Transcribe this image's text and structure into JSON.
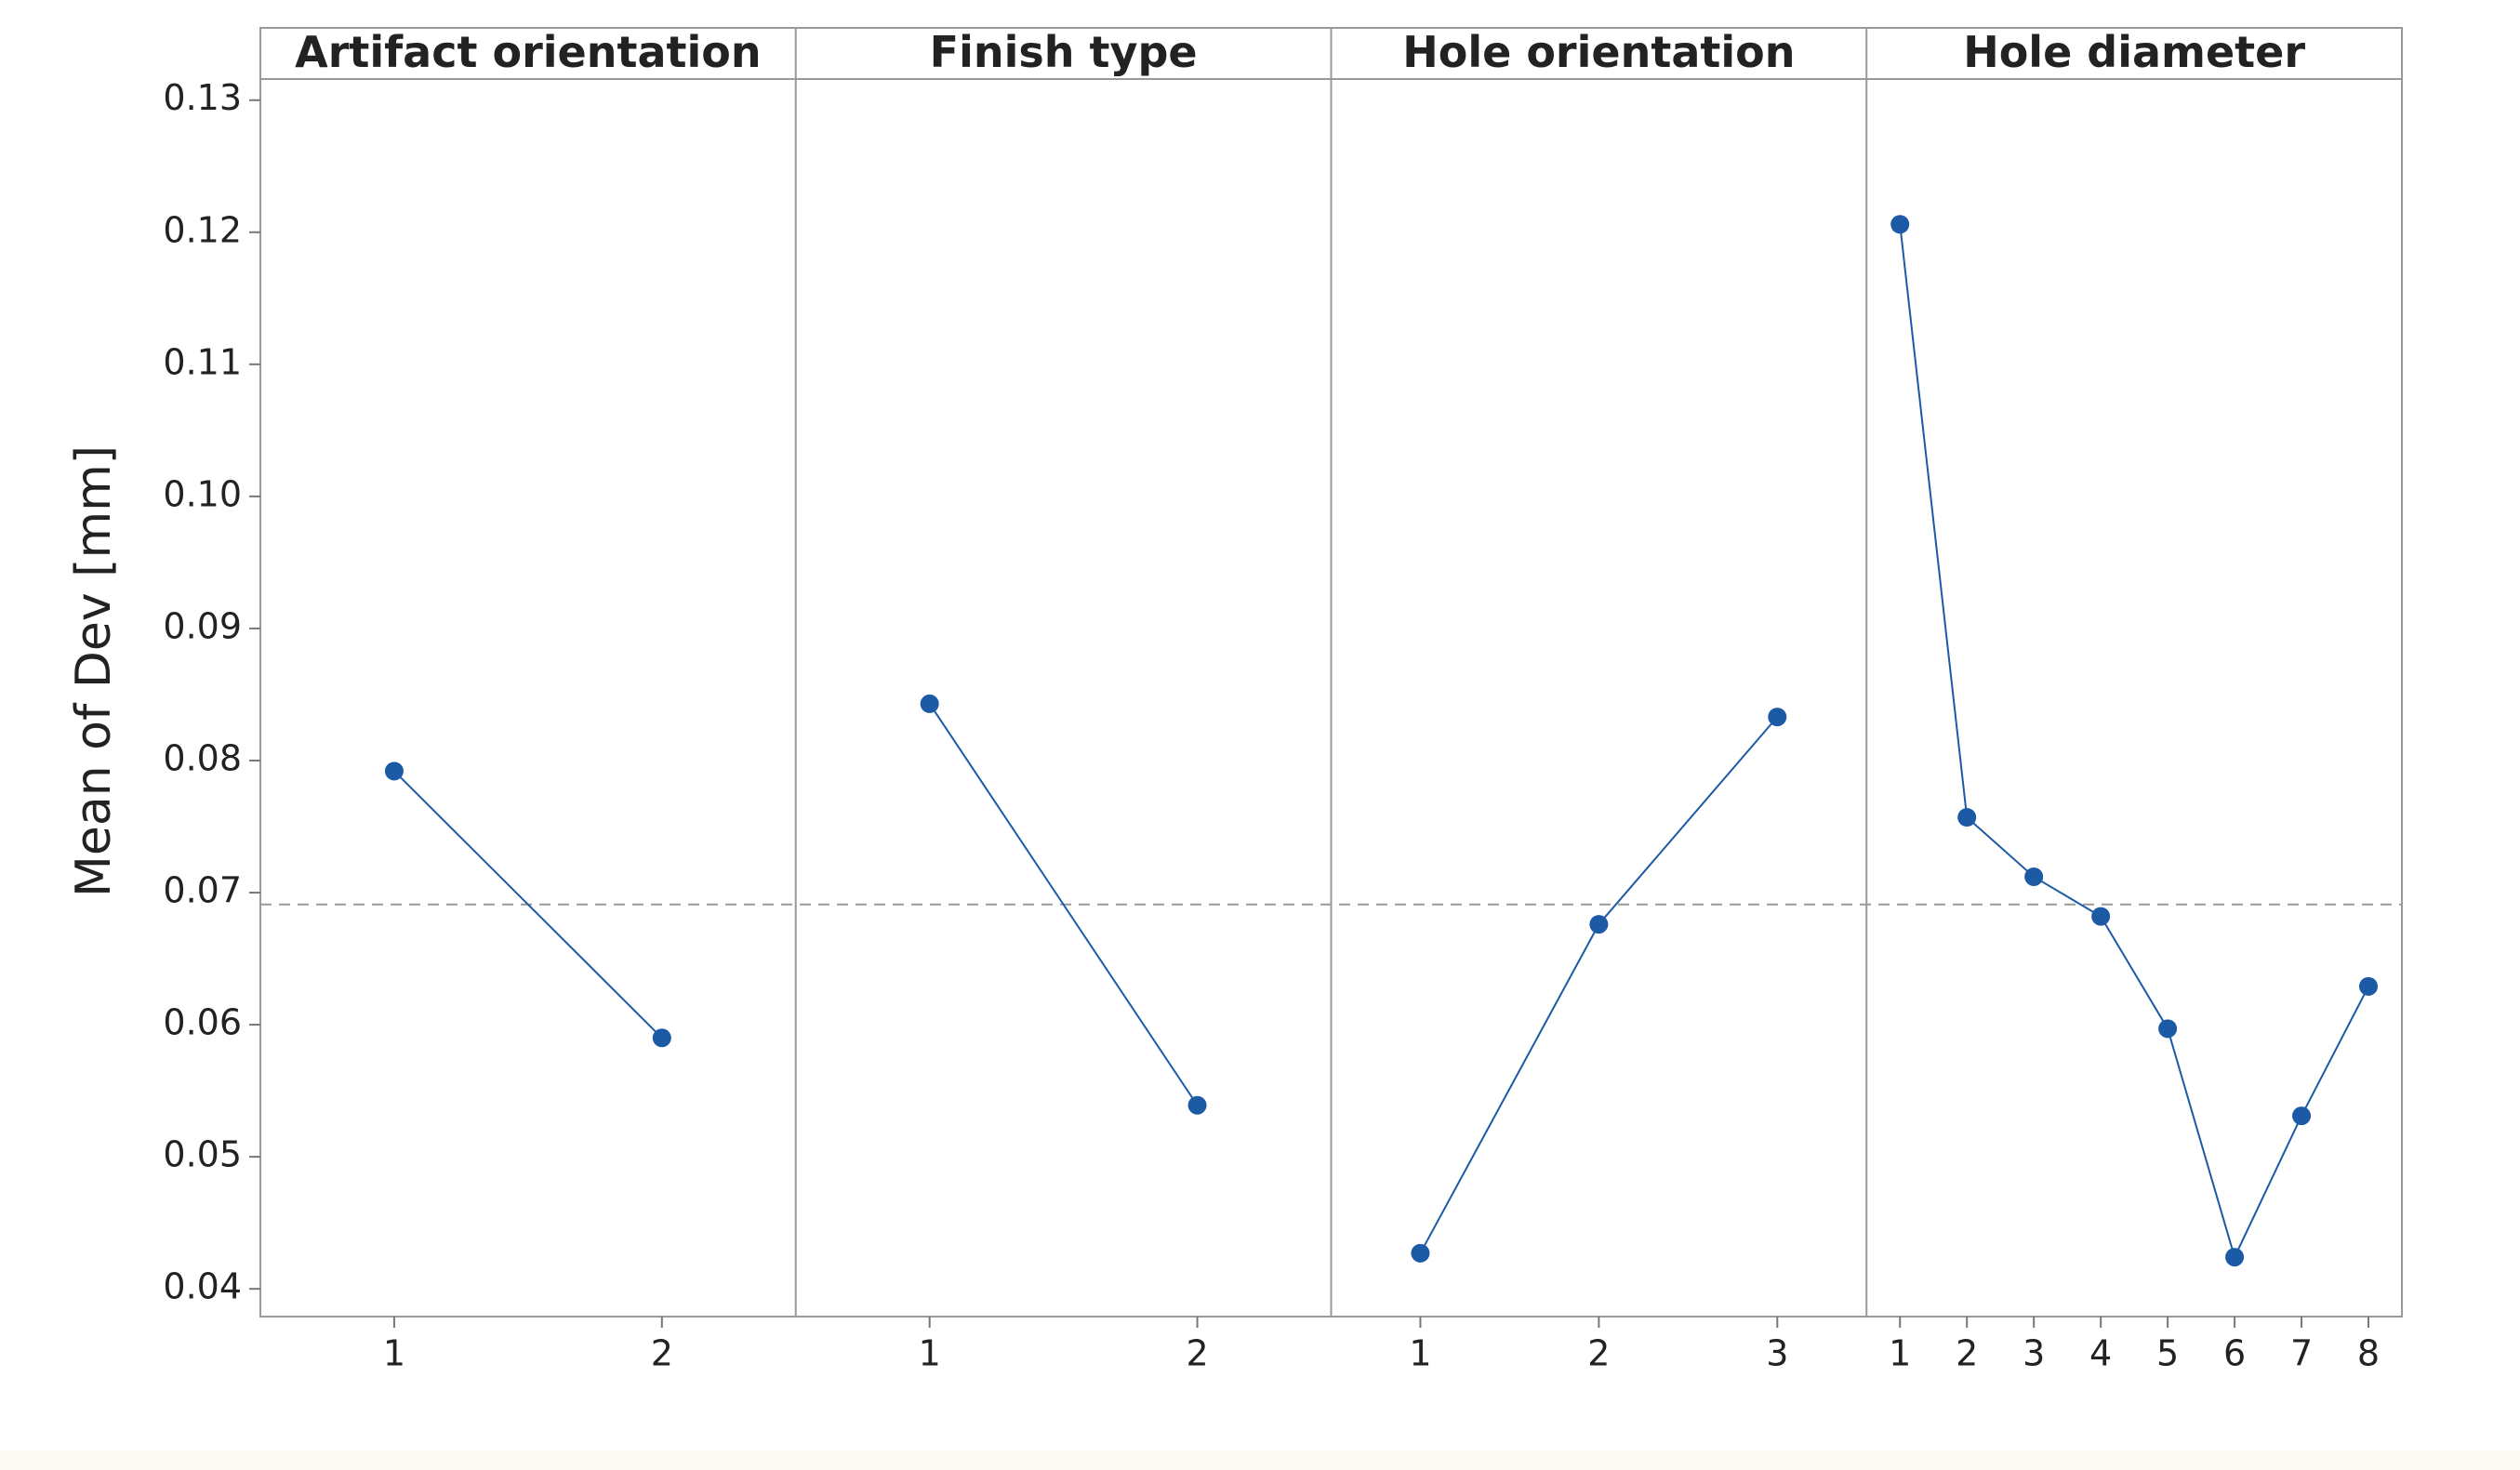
{
  "chart_data": {
    "type": "line",
    "ylabel": "Mean of Dev [mm]",
    "ylim": [
      0.0379,
      0.1316
    ],
    "yticks": [
      0.04,
      0.05,
      0.06,
      0.07,
      0.08,
      0.09,
      {
        "value": 0.1,
        "label": "0.10"
      },
      0.11,
      0.12,
      0.13
    ],
    "reference_line": 0.0691,
    "color": "#1c5aa6",
    "panels": [
      {
        "title": "Artifact orientation",
        "categories": [
          1,
          2
        ],
        "values": [
          0.0792,
          0.059
        ]
      },
      {
        "title": "Finish type",
        "categories": [
          1,
          2
        ],
        "values": [
          0.0843,
          0.0539
        ]
      },
      {
        "title": "Hole orientation",
        "categories": [
          1,
          2,
          3
        ],
        "values": [
          0.0427,
          0.0676,
          0.0833
        ]
      },
      {
        "title": "Hole diameter",
        "categories": [
          1,
          2,
          3,
          4,
          5,
          6,
          7,
          8
        ],
        "values": [
          0.1206,
          0.0757,
          0.0712,
          0.0682,
          0.0597,
          0.0424,
          0.0531,
          0.0629
        ]
      }
    ]
  }
}
